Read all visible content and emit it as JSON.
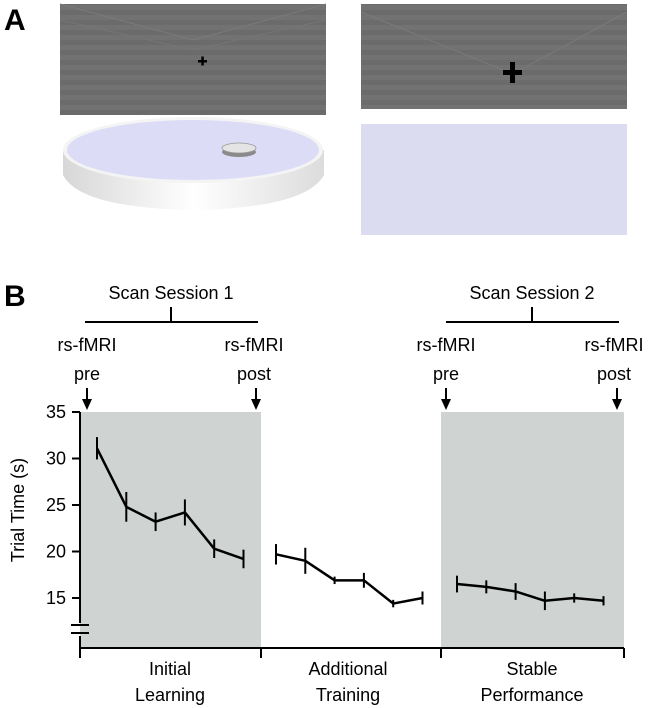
{
  "panel_a": {
    "label": "A",
    "left_view": "virtual-arena-overview",
    "right_view": "virtual-arena-first-person"
  },
  "panel_b": {
    "label": "B",
    "sessions": [
      {
        "name": "Scan Session 1",
        "pre_label": [
          "rs-fMRI",
          "pre"
        ],
        "post_label": [
          "rs-fMRI",
          "post"
        ]
      },
      {
        "name": "Scan Session 2",
        "pre_label": [
          "rs-fMRI",
          "pre"
        ],
        "post_label": [
          "rs-fMRI",
          "post"
        ]
      }
    ],
    "phases": [
      {
        "line1": "Initial",
        "line2": "Learning",
        "shaded": true
      },
      {
        "line1": "Additional",
        "line2": "Training",
        "shaded": false
      },
      {
        "line1": "Stable",
        "line2": "Performance",
        "shaded": true
      }
    ],
    "shade_color": "#cfd4d2"
  },
  "chart_data": {
    "type": "line",
    "ylabel": "Trial Time (s)",
    "ylim": [
      10,
      35
    ],
    "yticks": [
      15,
      20,
      25,
      30,
      35
    ],
    "axis_break": true,
    "series": [
      {
        "values": [
          31.1,
          24.8,
          23.2,
          24.2,
          20.3,
          19.2
        ],
        "errors": [
          1.2,
          1.6,
          1.0,
          1.4,
          1.0,
          1.0
        ]
      },
      {
        "values": [
          19.7,
          19.0,
          16.9,
          16.9,
          14.4,
          15.0
        ],
        "errors": [
          1.1,
          1.4,
          0.4,
          0.8,
          0.4,
          0.7
        ]
      },
      {
        "values": [
          16.5,
          16.2,
          15.7,
          14.7,
          15.0,
          14.7
        ],
        "errors": [
          0.9,
          0.7,
          0.9,
          1.0,
          0.5,
          0.5
        ]
      }
    ]
  }
}
